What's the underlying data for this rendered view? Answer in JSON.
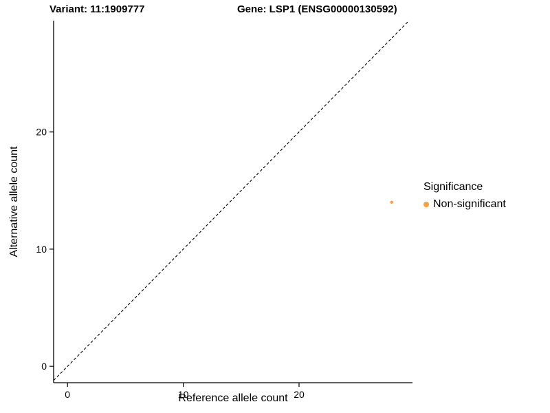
{
  "chart_data": {
    "type": "scatter",
    "title_left": "Variant: 11:1909777",
    "title_right": "Gene: LSP1 (ENSG00000130592)",
    "xlabel": "Reference allele count",
    "ylabel": "Alternative allele count",
    "xlim": [
      -1.2,
      29.8
    ],
    "ylim": [
      -1.4,
      29.5
    ],
    "xticks": [
      0,
      10,
      20
    ],
    "yticks": [
      0,
      10,
      20
    ],
    "grid": false,
    "reference_line": {
      "type": "identity",
      "slope": 1,
      "intercept": 0,
      "style": "dashed",
      "color": "#000000"
    },
    "series": [
      {
        "name": "Non-significant",
        "color": "#F9A03C",
        "points": [
          {
            "x": 28,
            "y": 14
          }
        ]
      }
    ],
    "legend": {
      "title": "Significance",
      "position": "right",
      "entries": [
        {
          "label": "Non-significant",
          "color": "#F9A03C",
          "marker": "circle"
        }
      ]
    },
    "colors": {
      "axis": "#000000",
      "text": "#000000",
      "background": "#FFFFFF"
    }
  }
}
